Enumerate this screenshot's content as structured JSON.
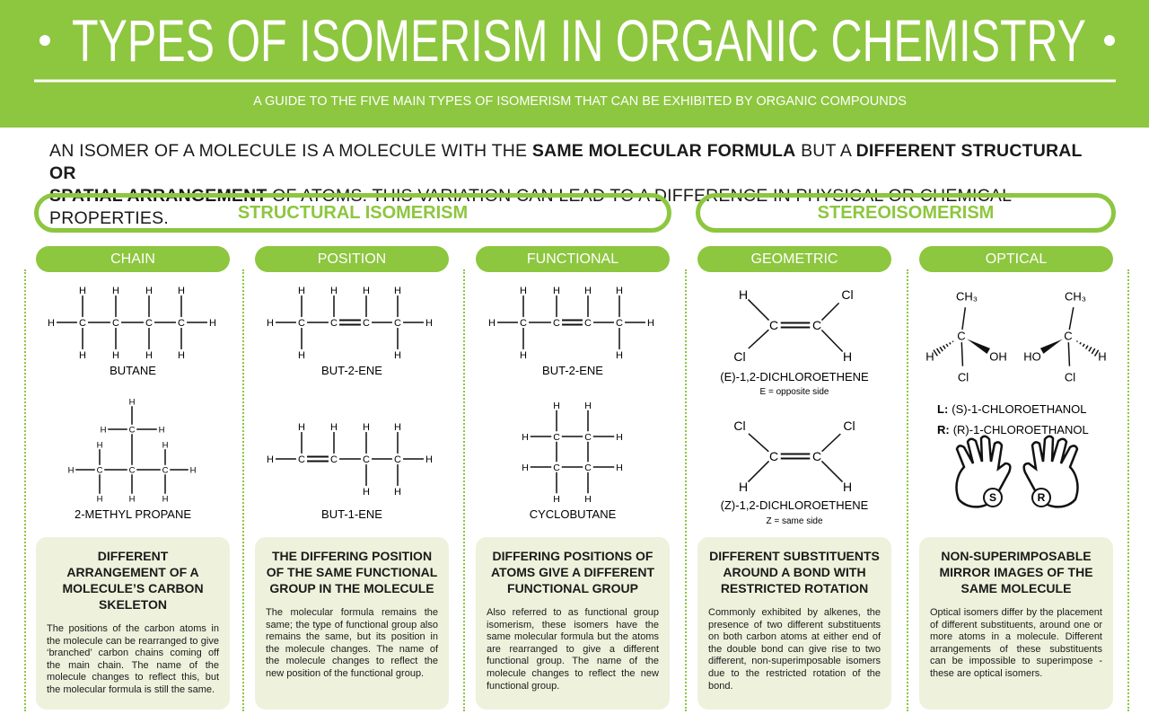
{
  "header": {
    "title": "TYPES OF ISOMERISM IN ORGANIC CHEMISTRY",
    "subtitle": "A GUIDE TO THE FIVE MAIN TYPES OF ISOMERISM THAT CAN BE EXHIBITED BY ORGANIC COMPOUNDS"
  },
  "intro": {
    "p1": "AN ISOMER OF A MOLECULE IS A MOLECULE WITH THE ",
    "b1": "SAME MOLECULAR FORMULA",
    "p2": " BUT A ",
    "b2": "DIFFERENT STRUCTURAL OR",
    "b3": "SPATIAL ARRANGEMENT",
    "p3": " OF ATOMS. THIS VARIATION CAN LEAD TO A DIFFERENCE IN PHYSICAL OR CHEMICAL PROPERTIES."
  },
  "groups": [
    {
      "label": "STRUCTURAL ISOMERISM"
    },
    {
      "label": "STEREOISOMERISM"
    }
  ],
  "columns": [
    {
      "title": "CHAIN",
      "molecules": [
        {
          "name": "BUTANE",
          "atoms": [
            "C",
            "C",
            "C",
            "C",
            "H",
            "H",
            "H",
            "H",
            "H",
            "H",
            "H",
            "H",
            "H",
            "H"
          ]
        },
        {
          "name": "2-METHYL PROPANE",
          "atoms": [
            "C",
            "C",
            "C",
            "C",
            "H",
            "H",
            "H",
            "H",
            "H",
            "H",
            "H",
            "H",
            "H",
            "H"
          ]
        }
      ],
      "heading": "DIFFERENT ARRANGEMENT OF A MOLECULE’S CARBON SKELETON",
      "body": "The positions of the carbon atoms in the molecule can be rearranged to give ‘branched’ carbon chains coming off the main chain. The name of the molecule changes to reflect this, but the molecular formula is still the same."
    },
    {
      "title": "POSITION",
      "molecules": [
        {
          "name": "BUT-2-ENE",
          "atoms": [
            "C",
            "C",
            "C",
            "C",
            "H",
            "H",
            "H",
            "H",
            "H",
            "H",
            "H",
            "H"
          ]
        },
        {
          "name": "BUT-1-ENE",
          "atoms": [
            "C",
            "C",
            "C",
            "C",
            "H",
            "H",
            "H",
            "H",
            "H",
            "H",
            "H",
            "H"
          ]
        }
      ],
      "heading": "THE DIFFERING POSITION OF THE SAME FUNCTIONAL GROUP IN THE MOLECULE",
      "body": "The molecular formula remains the same; the type of functional group also remains the same, but its position in the molecule changes. The name of the molecule changes to reflect the new position of the functional group."
    },
    {
      "title": "FUNCTIONAL",
      "molecules": [
        {
          "name": "BUT-2-ENE",
          "atoms": [
            "C",
            "C",
            "C",
            "C",
            "H",
            "H",
            "H",
            "H",
            "H",
            "H",
            "H",
            "H"
          ]
        },
        {
          "name": "CYCLOBUTANE",
          "atoms": [
            "C",
            "C",
            "C",
            "C",
            "H",
            "H",
            "H",
            "H",
            "H",
            "H",
            "H",
            "H"
          ]
        }
      ],
      "heading": "DIFFERING POSITIONS OF ATOMS GIVE A DIFFERENT FUNCTIONAL GROUP",
      "body": "Also referred to as functional group isomerism, these isomers have the same molecular formula but the atoms are rearranged to give a different functional group. The name of the molecule changes to reflect the new functional group."
    },
    {
      "title": "GEOMETRIC",
      "molecules": [
        {
          "name": "(E)-1,2-DICHLOROETHENE",
          "note": "E = opposite side",
          "atoms": [
            "C",
            "C",
            "H",
            "Cl",
            "Cl",
            "H"
          ]
        },
        {
          "name": "(Z)-1,2-DICHLOROETHENE",
          "note": "Z = same side",
          "atoms": [
            "C",
            "C",
            "Cl",
            "Cl",
            "H",
            "H"
          ]
        }
      ],
      "heading": "DIFFERENT SUBSTITUENTS AROUND A BOND WITH RESTRICTED ROTATION",
      "body": "Commonly exhibited by alkenes, the presence of two different substituents on both carbon atoms at either end of the double bond can give rise to two different, non-superimposable isomers due to the restricted rotation of the bond."
    },
    {
      "title": "OPTICAL",
      "molecules": [
        {
          "atoms": [
            "C",
            "CH₃",
            "Cl",
            "H",
            "OH"
          ]
        },
        {
          "atoms": [
            "C",
            "CH₃",
            "Cl",
            "HO",
            "H"
          ]
        }
      ],
      "labels": [
        {
          "key": "L:",
          "text": "(S)-1-CHLOROETHANOL"
        },
        {
          "key": "R:",
          "text": "(R)-1-CHLOROETHANOL"
        }
      ],
      "hands": [
        "S",
        "R"
      ],
      "heading": "NON-SUPERIMPOSABLE MIRROR IMAGES OF THE SAME MOLECULE",
      "body": "Optical isomers differ by the placement of different substituents, around one or more atoms in a molecule. Different arrangements of these substituents can be impossible to superimpose - these are optical isomers."
    }
  ]
}
